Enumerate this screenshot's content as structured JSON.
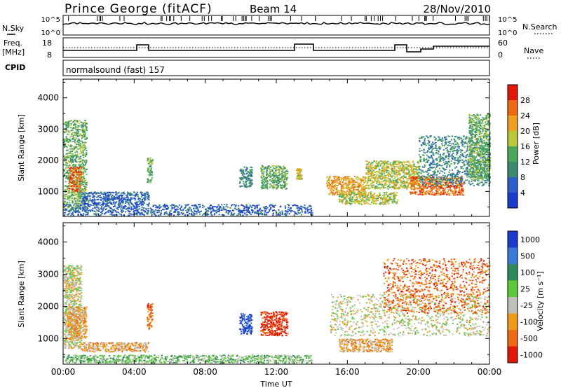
{
  "header": {
    "station": "Prince George (fitACF)",
    "beam": "Beam 14",
    "date": "28/Nov/2010"
  },
  "param_labels": {
    "nsky": "N.Sky",
    "nsearch": "N.Search",
    "freq": "Freq.",
    "freq_unit": "[MHz]",
    "nave": "Nave",
    "cpid": "CPID",
    "cpid_value": "normalsound (fast) 157"
  },
  "param_ticks": {
    "noise_left": [
      "10^5",
      "10^0"
    ],
    "noise_right": [
      "10^5",
      "10^0"
    ],
    "freq_left": [
      "18",
      "8"
    ],
    "nave_right": [
      "60",
      "0"
    ]
  },
  "colors": {
    "power": [
      "#1a3ccc",
      "#2e5fc8",
      "#3a8a72",
      "#4aa85a",
      "#b8c83a",
      "#f0a020",
      "#ee6a10",
      "#e01808"
    ],
    "velocity": [
      "#1a3ccc",
      "#3a7ad8",
      "#2e8a5a",
      "#5cc83a",
      "#c0c0b8",
      "#ee9a18",
      "#ee6a10",
      "#e01808"
    ]
  },
  "chart_data": [
    {
      "type": "heatmap",
      "name": "power",
      "xlabel": "",
      "ylabel": "Slant Range [km]",
      "x_ticks": [
        "00:00",
        "04:00",
        "08:00",
        "12:00",
        "16:00",
        "20:00",
        "00:00"
      ],
      "xlim": [
        0,
        24
      ],
      "ylim": [
        200,
        4600
      ],
      "y_ticks": [
        "1000",
        "2000",
        "3000",
        "4000"
      ],
      "colorbar": {
        "label": "Power [dB]",
        "ticks": [
          "4",
          "8",
          "12",
          "16",
          "20",
          "24",
          "28"
        ],
        "range": [
          0,
          32
        ]
      },
      "echo_regions": [
        {
          "t": [
            0.0,
            1.3
          ],
          "r": [
            400,
            3300
          ],
          "level": 3
        },
        {
          "t": [
            0.3,
            1.0
          ],
          "r": [
            1000,
            1800
          ],
          "level": 6
        },
        {
          "t": [
            1.0,
            4.8
          ],
          "r": [
            600,
            1000
          ],
          "level": 1
        },
        {
          "t": [
            0.0,
            14.0
          ],
          "r": [
            250,
            600
          ],
          "level": 1
        },
        {
          "t": [
            4.7,
            5.0
          ],
          "r": [
            1300,
            2100
          ],
          "level": 3
        },
        {
          "t": [
            9.9,
            10.6
          ],
          "r": [
            1150,
            1800
          ],
          "level": 2
        },
        {
          "t": [
            11.1,
            12.6
          ],
          "r": [
            1100,
            1850
          ],
          "level": 3
        },
        {
          "t": [
            13.1,
            13.4
          ],
          "r": [
            1400,
            1750
          ],
          "level": 4
        },
        {
          "t": [
            14.8,
            17.0
          ],
          "r": [
            900,
            1500
          ],
          "level": 5
        },
        {
          "t": [
            15.5,
            18.8
          ],
          "r": [
            600,
            1000
          ],
          "level": 4
        },
        {
          "t": [
            17.0,
            20.0
          ],
          "r": [
            1100,
            2000
          ],
          "level": 4
        },
        {
          "t": [
            19.5,
            22.5
          ],
          "r": [
            900,
            1500
          ],
          "level": 6
        },
        {
          "t": [
            20.0,
            24.0
          ],
          "r": [
            1200,
            2800
          ],
          "level": 2
        },
        {
          "t": [
            22.8,
            24.0
          ],
          "r": [
            1400,
            3500
          ],
          "level": 3
        }
      ]
    },
    {
      "type": "heatmap",
      "name": "velocity",
      "xlabel": "Time UT",
      "ylabel": "Slant Range [km]",
      "x_ticks": [
        "00:00",
        "04:00",
        "08:00",
        "12:00",
        "16:00",
        "20:00",
        "00:00"
      ],
      "xlim": [
        0,
        24
      ],
      "ylim": [
        200,
        4600
      ],
      "y_ticks": [
        "1000",
        "2000",
        "3000",
        "4000"
      ],
      "colorbar": {
        "label": "Velocity [m s⁻¹]",
        "ticks": [
          "1000",
          "500",
          "100",
          "25",
          "-25",
          "-100",
          "-500",
          "-1000"
        ]
      },
      "echo_regions": [
        {
          "t": [
            0.0,
            1.0
          ],
          "r": [
            700,
            3300
          ],
          "level": 4
        },
        {
          "t": [
            0.2,
            1.3
          ],
          "r": [
            1000,
            2000
          ],
          "level": 5
        },
        {
          "t": [
            1.0,
            4.8
          ],
          "r": [
            600,
            900
          ],
          "level": 5
        },
        {
          "t": [
            0.0,
            14.0
          ],
          "r": [
            250,
            500
          ],
          "level": 3
        },
        {
          "t": [
            4.7,
            5.0
          ],
          "r": [
            1300,
            2100
          ],
          "level": 6
        },
        {
          "t": [
            9.9,
            10.6
          ],
          "r": [
            1150,
            1800
          ],
          "level": 0
        },
        {
          "t": [
            11.1,
            12.6
          ],
          "r": [
            1100,
            1850
          ],
          "level": 7
        },
        {
          "t": [
            15.0,
            24.0
          ],
          "r": [
            1100,
            2400
          ],
          "level": 4
        },
        {
          "t": [
            15.5,
            18.5
          ],
          "r": [
            600,
            1000
          ],
          "level": 5
        },
        {
          "t": [
            18.0,
            24.0
          ],
          "r": [
            1800,
            3500
          ],
          "level": 6
        }
      ]
    }
  ]
}
